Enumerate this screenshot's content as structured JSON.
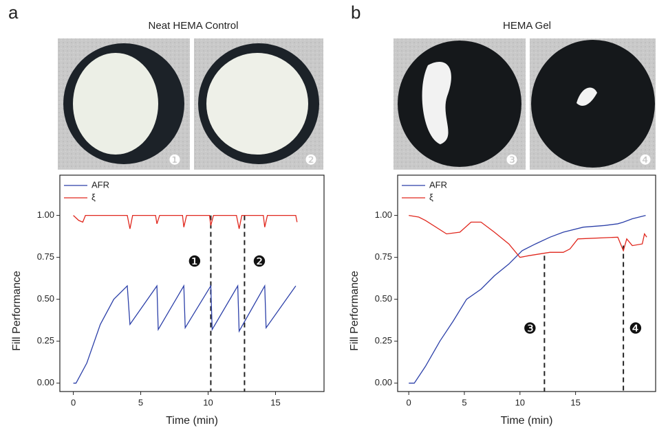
{
  "chart_data": [
    {
      "type": "line",
      "panel_label": "a",
      "photo_title": "Neat HEMA Control",
      "photo_labels": [
        "❶",
        "❷"
      ],
      "x_label": "Time (min)",
      "y_label": "Fill Performance",
      "xlim": [
        -1,
        18.6
      ],
      "ylim": [
        -0.05,
        1.24
      ],
      "xticks": [
        0,
        5,
        10,
        15
      ],
      "yticks": [
        {
          "value": 0,
          "label": "0.00"
        },
        {
          "value": 0.25,
          "label": "0.25"
        },
        {
          "value": 0.5,
          "label": "0.50"
        },
        {
          "value": 0.75,
          "label": "0.75"
        },
        {
          "value": 1,
          "label": "1.00"
        }
      ],
      "series": [
        {
          "name": "AFR",
          "color": "#2b3fa8",
          "x": [
            0,
            0.2,
            1,
            2,
            3,
            4,
            4.2,
            6.2,
            6.3,
            8.2,
            8.3,
            10.2,
            10.3,
            12.2,
            12.3,
            14.2,
            14.3,
            16.5
          ],
          "values": [
            0,
            0,
            0.12,
            0.35,
            0.5,
            0.58,
            0.35,
            0.58,
            0.32,
            0.58,
            0.33,
            0.58,
            0.32,
            0.58,
            0.31,
            0.58,
            0.33,
            0.58
          ]
        },
        {
          "name": "ξ",
          "color": "#e0261c",
          "x": [
            0,
            0.4,
            0.7,
            0.9,
            4.0,
            4.2,
            4.4,
            6.1,
            6.2,
            6.4,
            8.1,
            8.2,
            8.4,
            10.1,
            10.2,
            10.4,
            12.1,
            12.3,
            12.5,
            14.1,
            14.2,
            14.4,
            16.5,
            16.6
          ],
          "values": [
            1.0,
            0.97,
            0.96,
            1.0,
            1.0,
            0.92,
            1.0,
            1.0,
            0.95,
            1.0,
            1.0,
            0.93,
            1.0,
            1.0,
            0.94,
            1.0,
            1.0,
            0.92,
            1.0,
            1.0,
            0.93,
            1.0,
            1.0,
            0.96
          ]
        }
      ],
      "vlines": [
        {
          "x": 10.2,
          "top": 1.0
        },
        {
          "x": 12.7,
          "top": 1.0
        }
      ],
      "annotations": [
        {
          "text": "❶",
          "x": 9.0,
          "y": 0.72
        },
        {
          "text": "❷",
          "x": 13.8,
          "y": 0.72
        }
      ]
    },
    {
      "type": "line",
      "panel_label": "b",
      "photo_title": "HEMA Gel",
      "photo_labels": [
        "❸",
        "❹"
      ],
      "x_label": "Time (min)",
      "y_label": "Fill Performance",
      "xlim": [
        -1,
        22.2
      ],
      "ylim": [
        -0.05,
        1.24
      ],
      "xticks": [
        0,
        5,
        10,
        15
      ],
      "yticks": [
        {
          "value": 0,
          "label": "0.00"
        },
        {
          "value": 0.25,
          "label": "0.25"
        },
        {
          "value": 0.5,
          "label": "0.50"
        },
        {
          "value": 0.75,
          "label": "0.75"
        },
        {
          "value": 1,
          "label": "1.00"
        }
      ],
      "series": [
        {
          "name": "AFR",
          "color": "#2b3fa8",
          "x": [
            0,
            0.5,
            1.5,
            2.8,
            4,
            5.2,
            6.5,
            7.7,
            9,
            10.2,
            11.4,
            12.7,
            13.9,
            15.7,
            17.6,
            18.8,
            19.3,
            20.1,
            21.3
          ],
          "values": [
            0,
            0,
            0.1,
            0.25,
            0.37,
            0.5,
            0.56,
            0.64,
            0.71,
            0.79,
            0.83,
            0.87,
            0.9,
            0.93,
            0.94,
            0.95,
            0.96,
            0.98,
            1.0
          ]
        },
        {
          "name": "ξ",
          "color": "#e0261c",
          "x": [
            0,
            0.9,
            1.5,
            3.4,
            4.6,
            5.6,
            6.5,
            7.7,
            9.0,
            10.0,
            10.8,
            12.7,
            13.9,
            14.5,
            15.2,
            18.8,
            19.3,
            19.6,
            20.1,
            21.0,
            21.2,
            21.4
          ],
          "values": [
            1.0,
            0.99,
            0.97,
            0.89,
            0.9,
            0.96,
            0.96,
            0.9,
            0.83,
            0.75,
            0.76,
            0.78,
            0.78,
            0.8,
            0.86,
            0.87,
            0.79,
            0.86,
            0.82,
            0.83,
            0.89,
            0.87
          ]
        }
      ],
      "vlines": [
        {
          "x": 12.2,
          "top": 0.76
        },
        {
          "x": 19.3,
          "top": 0.82
        }
      ],
      "annotations": [
        {
          "text": "❸",
          "x": 10.9,
          "y": 0.32
        },
        {
          "text": "❹",
          "x": 20.4,
          "y": 0.32
        }
      ]
    }
  ]
}
